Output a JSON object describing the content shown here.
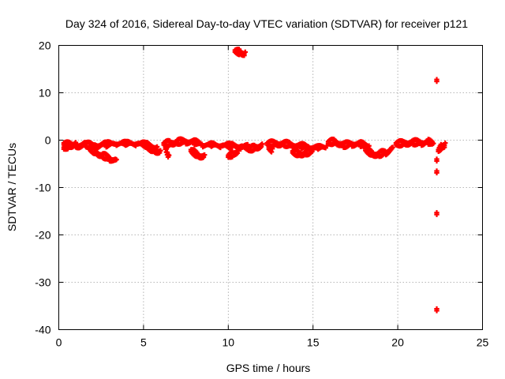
{
  "chart_data": {
    "type": "scatter",
    "title": "Day 324 of 2016, Sidereal Day-to-day VTEC variation (SDTVAR) for receiver p121",
    "xlabel": "GPS time / hours",
    "ylabel": "SDTVAR / TECUs",
    "xlim": [
      0,
      25
    ],
    "ylim": [
      -40,
      20
    ],
    "xticks": [
      0,
      5,
      10,
      15,
      20,
      25
    ],
    "yticks": [
      -40,
      -30,
      -20,
      -10,
      0,
      10,
      20
    ],
    "grid": true,
    "marker_color": "#ff0000",
    "series": [
      {
        "name": "SDTVAR",
        "segments": [
          {
            "x": [
              0.3,
              1.0,
              1.6,
              2.2,
              2.8,
              3.4,
              4.0,
              4.6,
              5.2,
              5.8
            ],
            "y": [
              -0.6,
              -0.9,
              -0.7,
              -0.9,
              -0.7,
              -0.5,
              -0.6,
              -0.5,
              -0.8,
              -1.4
            ]
          },
          {
            "x": [
              0.3,
              0.6,
              1.0
            ],
            "y": [
              -1.5,
              -0.9,
              -0.5
            ]
          },
          {
            "x": [
              1.8,
              2.2,
              2.6,
              3.0,
              3.4
            ],
            "y": [
              -1.5,
              -2.3,
              -3.0,
              -3.6,
              -4.1
            ]
          },
          {
            "x": [
              5.2,
              5.6,
              6.0
            ],
            "y": [
              -1.2,
              -1.8,
              -2.2
            ]
          },
          {
            "x": [
              6.2,
              6.6,
              7.0,
              7.5,
              8.0,
              8.5,
              9.0,
              9.6,
              10.2,
              10.8,
              11.2
            ],
            "y": [
              -0.6,
              -0.3,
              -0.1,
              0.0,
              -0.2,
              -0.8,
              -0.9,
              -0.9,
              -1.0,
              -1.1,
              -1.3
            ]
          },
          {
            "x": [
              6.3,
              6.4,
              6.5
            ],
            "y": [
              -1.5,
              -2.5,
              -3.2
            ]
          },
          {
            "x": [
              7.8,
              8.2,
              8.6
            ],
            "y": [
              -2.0,
              -2.9,
              -3.1
            ]
          },
          {
            "x": [
              10.0,
              10.3,
              10.6
            ],
            "y": [
              -3.2,
              -2.6,
              -1.8
            ]
          },
          {
            "x": [
              10.4,
              10.7,
              11.0
            ],
            "y": [
              19.0,
              18.8,
              18.6
            ]
          },
          {
            "x": [
              11.2,
              11.6,
              12.0
            ],
            "y": [
              -1.8,
              -1.2,
              -0.8
            ]
          },
          {
            "x": [
              12.3,
              12.8,
              13.3,
              13.8,
              14.3,
              14.8,
              15.3,
              15.8
            ],
            "y": [
              -0.6,
              -0.4,
              -0.5,
              -0.8,
              -1.0,
              -1.3,
              -1.5,
              -1.2
            ]
          },
          {
            "x": [
              12.4,
              12.6
            ],
            "y": [
              -1.5,
              -1.8
            ]
          },
          {
            "x": [
              13.8,
              14.2,
              14.6,
              15.0
            ],
            "y": [
              -2.3,
              -2.6,
              -2.4,
              -2.0
            ]
          },
          {
            "x": [
              15.9,
              16.3,
              16.8,
              17.3,
              17.8,
              18.3
            ],
            "y": [
              -0.3,
              0.0,
              -0.8,
              -0.5,
              -0.6,
              -1.2
            ]
          },
          {
            "x": [
              18.1,
              18.5,
              18.9,
              19.3,
              19.7
            ],
            "y": [
              -1.8,
              -2.6,
              -2.7,
              -2.3,
              -1.5
            ]
          },
          {
            "x": [
              19.9,
              20.4,
              20.9,
              21.4,
              21.8,
              22.1
            ],
            "y": [
              -0.6,
              -0.3,
              -0.2,
              -0.3,
              -0.1,
              -0.7
            ]
          },
          {
            "x": [
              22.4,
              22.6,
              22.8
            ],
            "y": [
              -2.0,
              -1.0,
              -0.6
            ]
          }
        ],
        "points": {
          "x": [
            22.3,
            22.3,
            22.3,
            22.3,
            22.3
          ],
          "y": [
            12.8,
            -4.0,
            -6.5,
            -15.3,
            -35.6
          ]
        }
      }
    ]
  }
}
